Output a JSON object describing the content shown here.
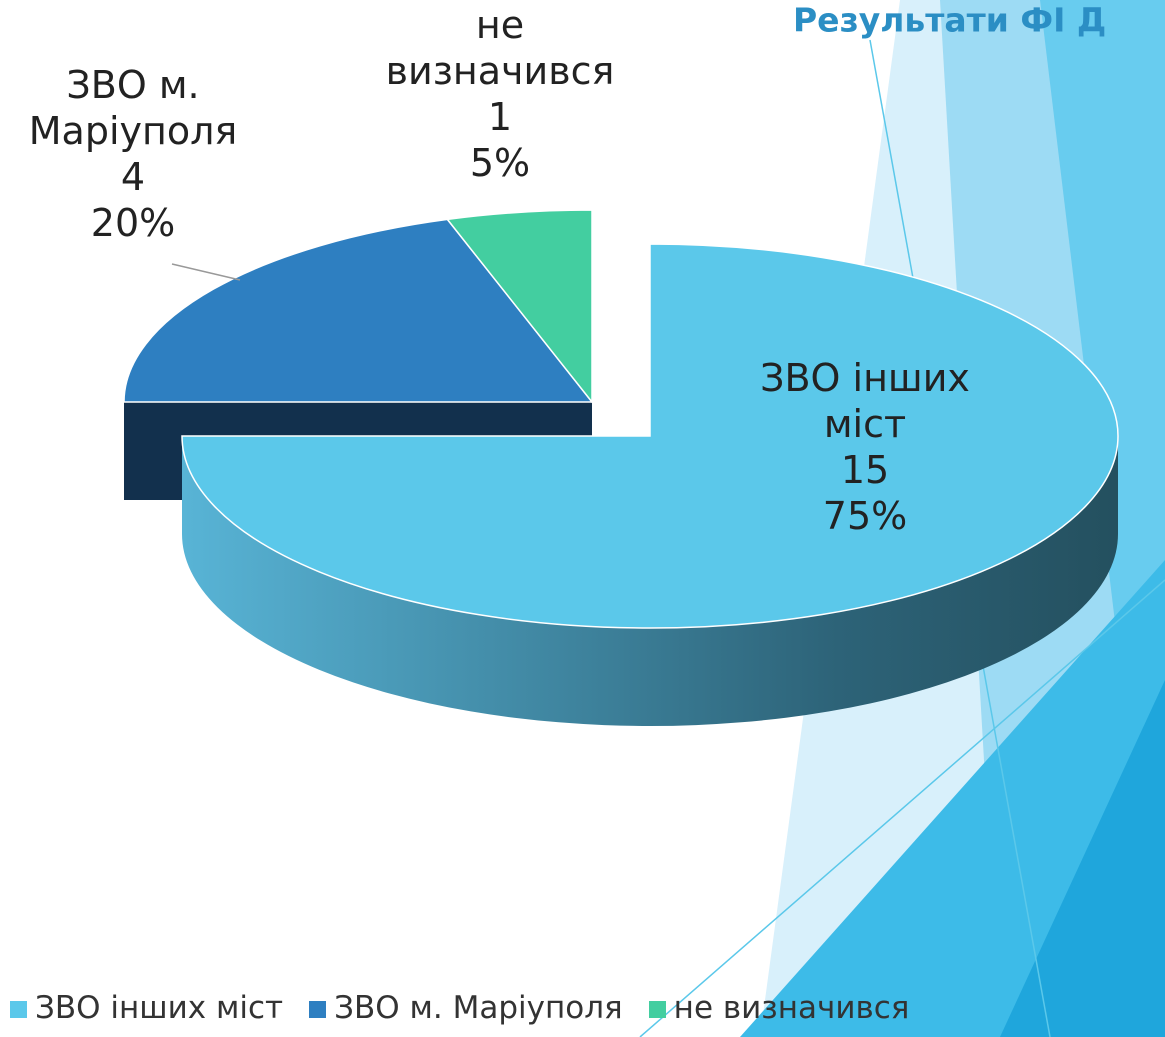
{
  "chart_data": {
    "type": "pie",
    "title": "Результати ФІ Д",
    "categories": [
      "ЗВО інших міст",
      "ЗВО м. Маріуполя",
      "не визначився"
    ],
    "values": [
      15,
      4,
      1
    ],
    "percent_labels": [
      "75%",
      "20%",
      "5%"
    ],
    "colors": [
      "#5bc8ea",
      "#2e7fc1",
      "#43cea0"
    ],
    "exploded": 0,
    "legend": "bottom"
  }
}
